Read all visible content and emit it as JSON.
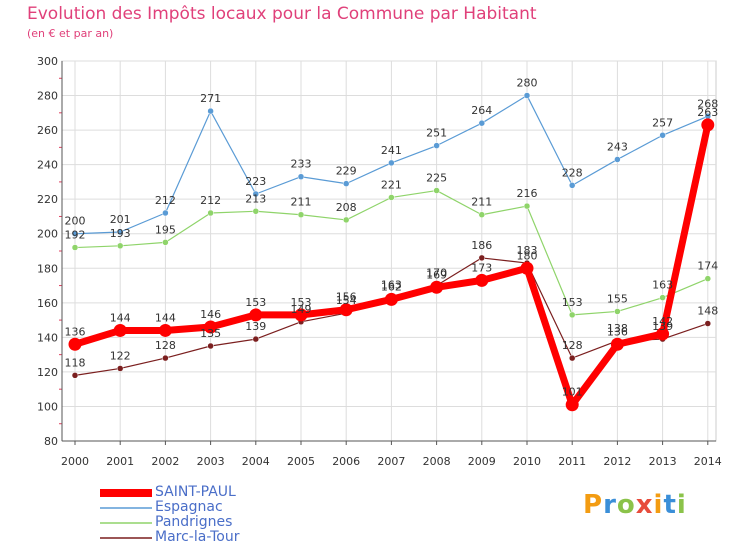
{
  "header": {
    "title": "Evolution des Impôts locaux pour la Commune par Habitant",
    "subtitle": "(en € et par an)"
  },
  "logo": {
    "text": "Proxiti",
    "colors": [
      "#f39c12",
      "#3b8fd8",
      "#8bc34a",
      "#e74c3c"
    ]
  },
  "chart_data": {
    "type": "line",
    "x": [
      "2000",
      "2001",
      "2002",
      "2003",
      "2004",
      "2005",
      "2006",
      "2007",
      "2008",
      "2009",
      "2010",
      "2011",
      "2012",
      "2013",
      "2014"
    ],
    "ylim": [
      80,
      300
    ],
    "yticks": [
      80,
      100,
      120,
      140,
      160,
      180,
      200,
      220,
      240,
      260,
      280,
      300
    ],
    "grid": true,
    "legend_position": "bottom-left",
    "series": [
      {
        "name": "SAINT-PAUL",
        "color": "#ff0000",
        "values": [
          136,
          144,
          144,
          146,
          153,
          153,
          156,
          162,
          169,
          173,
          180,
          101,
          136,
          142,
          263
        ]
      },
      {
        "name": "Espagnac",
        "color": "#5a9bd5",
        "values": [
          200,
          201,
          212,
          271,
          223,
          233,
          229,
          241,
          251,
          264,
          280,
          228,
          243,
          257,
          268
        ]
      },
      {
        "name": "Pandrignes",
        "color": "#8fd46a",
        "values": [
          192,
          193,
          195,
          212,
          213,
          211,
          208,
          221,
          225,
          211,
          216,
          153,
          155,
          163,
          174
        ]
      },
      {
        "name": "Marc-la-Tour",
        "color": "#7b1f1f",
        "values": [
          118,
          122,
          128,
          135,
          139,
          149,
          154,
          163,
          170,
          186,
          183,
          128,
          138,
          139,
          148
        ]
      }
    ]
  }
}
